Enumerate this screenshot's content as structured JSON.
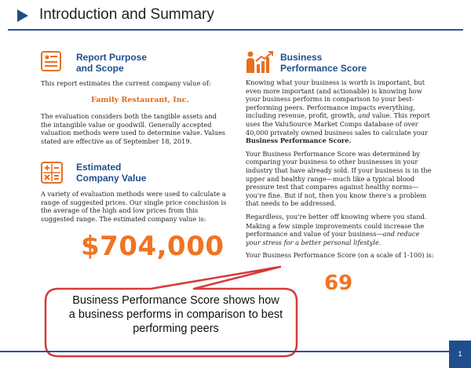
{
  "header": {
    "title": "Introduction and Summary"
  },
  "report_purpose": {
    "title_line1": "Report Purpose",
    "title_line2": "and Scope",
    "intro": "This report estimates the current company value of:",
    "company_name": "Family Restaurant, Inc.",
    "paragraph": "The evaluation considers both the tangible assets and the intangible value or goodwill. Generally accepted valuation methods were used to determine value. Values stated are effective as of September 18, 2019."
  },
  "estimated_value": {
    "title_line1": "Estimated",
    "title_line2": "Company Value",
    "paragraph": "A variety of evaluation methods were used to calculate a range of suggested prices. Our single price conclusion is the average of the high and low prices from this suggested range. The estimated company value is:",
    "value": "$704,000"
  },
  "performance": {
    "title_line1": "Business",
    "title_line2": "Performance Score",
    "p1_a": "Knowing what your business is worth is important, but even more important (and actionable) is knowing how your business performs in comparison to your best-performing peers. Performance impacts everything, including revenue, profit, growth, ",
    "p1_and": "and",
    "p1_b": " value. This report uses the ValuSource Market Comps database of over 40,000 privately owned business sales to calculate your ",
    "p1_bold": "Business Performance Score.",
    "p2": "Your Business Performance Score was determined by comparing your business to other businesses in your industry that have already sold. If your business is in the upper and healthy range—much like a typical blood pressure test that compares against healthy norms—you're fine. But if not, then you know there's a problem that needs to be addressed.",
    "p3": "Regardless, you're better off knowing where you stand.",
    "p4_a": "Making a few simple improvements could increase the performance and value of your business—",
    "p4_italic": "and reduce your stress for a better personal lifestyle.",
    "p5": "Your Business Performance Score (on a scale of 1-100) is:",
    "score": "69"
  },
  "callout": {
    "line1": "Business Performance Score shows how",
    "line2": "a business performs in comparison to best",
    "line3": "performing peers"
  },
  "footer": {
    "page_number": "1"
  },
  "colors": {
    "accent_blue": "#1f4e8c",
    "accent_orange": "#f07422",
    "callout_border": "#d63a3a"
  },
  "icons": [
    "report-icon",
    "calculator-icon",
    "performance-icon"
  ]
}
